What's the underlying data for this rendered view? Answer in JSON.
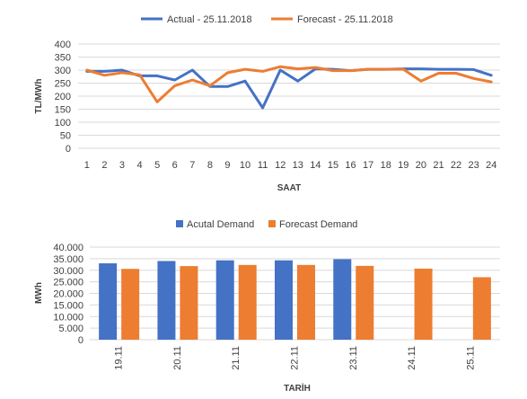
{
  "chart_data": [
    {
      "type": "line",
      "title": "",
      "xlabel": "SAAT",
      "ylabel": "TL/MWh",
      "ylim": [
        0,
        400
      ],
      "yticks": [
        "0",
        "50",
        "100",
        "150",
        "200",
        "250",
        "300",
        "350",
        "400"
      ],
      "grid": true,
      "legend_position": "top",
      "x": [
        1,
        2,
        3,
        4,
        5,
        6,
        7,
        8,
        9,
        10,
        11,
        12,
        13,
        14,
        15,
        16,
        17,
        18,
        19,
        20,
        21,
        22,
        23,
        24
      ],
      "series": [
        {
          "name": "Actual - 25.11.2018",
          "color": "#4472c4",
          "values": [
            295,
            295,
            300,
            278,
            278,
            262,
            300,
            237,
            237,
            258,
            155,
            300,
            258,
            305,
            303,
            298,
            303,
            303,
            305,
            305,
            303,
            303,
            302,
            280
          ]
        },
        {
          "name": "Forecast - 25.11.2018",
          "color": "#ed7d31",
          "values": [
            300,
            280,
            290,
            282,
            178,
            240,
            262,
            240,
            290,
            303,
            295,
            313,
            305,
            310,
            298,
            298,
            303,
            303,
            303,
            258,
            288,
            288,
            268,
            255
          ]
        }
      ]
    },
    {
      "type": "bar",
      "title": "",
      "xlabel": "TARİH",
      "ylabel": "MWh",
      "ylim": [
        0,
        40000
      ],
      "yticks": [
        "0",
        "5.000",
        "10.000",
        "15.000",
        "20.000",
        "25.000",
        "30.000",
        "35.000",
        "40.000"
      ],
      "grid": true,
      "legend_position": "top",
      "categories": [
        "19.11",
        "20.11",
        "21.11",
        "22.11",
        "23.11",
        "24.11",
        "25.11"
      ],
      "series": [
        {
          "name": "Acutal Demand",
          "color": "#4472c4",
          "values": [
            33000,
            34000,
            34300,
            34300,
            34800,
            null,
            null
          ]
        },
        {
          "name": "Forecast Demand",
          "color": "#ed7d31",
          "values": [
            30600,
            31800,
            32300,
            32300,
            31900,
            30700,
            27000
          ]
        }
      ]
    }
  ]
}
